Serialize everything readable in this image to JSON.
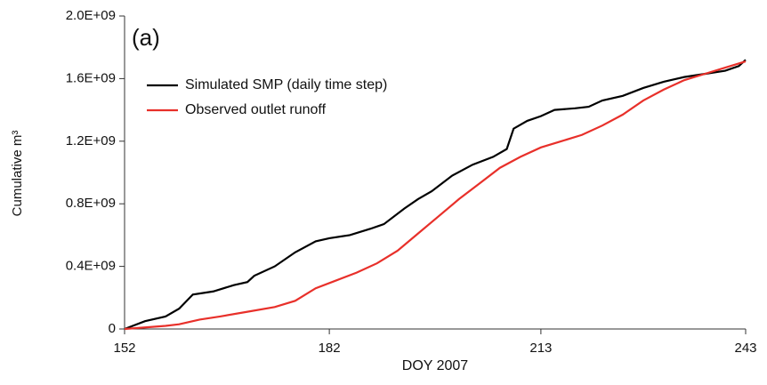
{
  "chart_data": {
    "type": "line",
    "title": "(a)",
    "x_label": "DOY 2007",
    "y_label": "Cumulative m³",
    "xlim": [
      152,
      243
    ],
    "xticks": [
      152,
      182,
      213,
      243
    ],
    "ylim": [
      0,
      2000000000
    ],
    "yticks": [
      0,
      {
        "value": 400000000,
        "label": "0.4E+09"
      },
      {
        "value": 800000000,
        "label": "0.8E+09"
      },
      {
        "value": 1200000000,
        "label": "1.2E+09"
      },
      {
        "value": 1600000000,
        "label": "1.6E+09"
      },
      {
        "value": 2000000000,
        "label": "2.0E+09"
      }
    ],
    "legend": "upper left",
    "series": [
      {
        "name": "Simulated SMP (daily time step)",
        "color": "#000000",
        "x": [
          152,
          155,
          158,
          160,
          162,
          165,
          168,
          170,
          171,
          174,
          177,
          180,
          182,
          185,
          188,
          190,
          193,
          195,
          197,
          200,
          203,
          206,
          208,
          209,
          211,
          213,
          215,
          218,
          220,
          222,
          225,
          228,
          231,
          234,
          237,
          240,
          242,
          243
        ],
        "values": [
          0,
          50000000,
          80000000,
          130000000,
          220000000,
          240000000,
          280000000,
          300000000,
          340000000,
          400000000,
          490000000,
          560000000,
          580000000,
          600000000,
          640000000,
          670000000,
          770000000,
          830000000,
          880000000,
          980000000,
          1050000000,
          1100000000,
          1150000000,
          1280000000,
          1330000000,
          1360000000,
          1400000000,
          1410000000,
          1420000000,
          1460000000,
          1490000000,
          1540000000,
          1580000000,
          1610000000,
          1630000000,
          1650000000,
          1680000000,
          1720000000
        ]
      },
      {
        "name": "Observed outlet runoff",
        "color": "#e8302a",
        "x": [
          152,
          155,
          158,
          160,
          163,
          166,
          170,
          174,
          177,
          180,
          183,
          186,
          189,
          192,
          195,
          198,
          201,
          204,
          207,
          210,
          213,
          216,
          219,
          222,
          225,
          228,
          231,
          234,
          237,
          240,
          243
        ],
        "values": [
          0,
          10000000,
          20000000,
          30000000,
          60000000,
          80000000,
          110000000,
          140000000,
          180000000,
          260000000,
          310000000,
          360000000,
          420000000,
          500000000,
          610000000,
          720000000,
          830000000,
          930000000,
          1030000000,
          1100000000,
          1160000000,
          1200000000,
          1240000000,
          1300000000,
          1370000000,
          1460000000,
          1530000000,
          1590000000,
          1630000000,
          1670000000,
          1710000000
        ]
      }
    ]
  }
}
